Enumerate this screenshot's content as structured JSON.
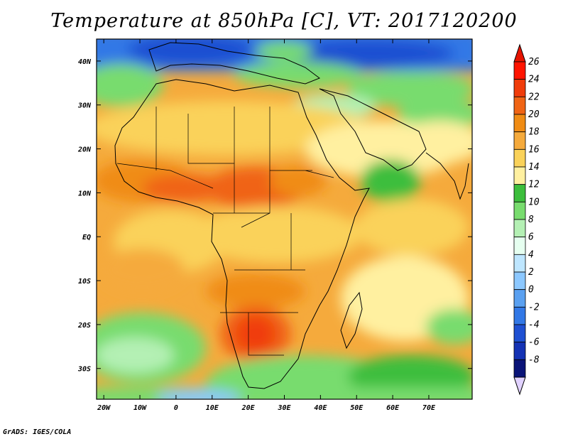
{
  "title": "Temperature at 850hPa [C], VT: 2017120200",
  "credit": "GrADS: IGES/COLA",
  "map": {
    "projection": "latlon",
    "lon_range": [
      -22,
      82
    ],
    "lat_range": [
      -37,
      45
    ],
    "lat_ticks": [
      {
        "value": 40,
        "label": "40N"
      },
      {
        "value": 30,
        "label": "30N"
      },
      {
        "value": 20,
        "label": "20N"
      },
      {
        "value": 10,
        "label": "10N"
      },
      {
        "value": 0,
        "label": "EQ"
      },
      {
        "value": -10,
        "label": "10S"
      },
      {
        "value": -20,
        "label": "20S"
      },
      {
        "value": -30,
        "label": "30S"
      }
    ],
    "lon_ticks": [
      {
        "value": -20,
        "label": "20W"
      },
      {
        "value": -10,
        "label": "10W"
      },
      {
        "value": 0,
        "label": "0"
      },
      {
        "value": 10,
        "label": "10E"
      },
      {
        "value": 20,
        "label": "20E"
      },
      {
        "value": 30,
        "label": "30E"
      },
      {
        "value": 40,
        "label": "40E"
      },
      {
        "value": 50,
        "label": "50E"
      },
      {
        "value": 60,
        "label": "60E"
      },
      {
        "value": 70,
        "label": "70E"
      }
    ]
  },
  "colorbar": {
    "levels": [
      {
        "label": "26",
        "color": "#ff1400"
      },
      {
        "label": "24",
        "color": "#f03c0a"
      },
      {
        "label": "22",
        "color": "#f06414"
      },
      {
        "label": "20",
        "color": "#f08c14"
      },
      {
        "label": "18",
        "color": "#f5aa3c"
      },
      {
        "label": "16",
        "color": "#fad25a"
      },
      {
        "label": "14",
        "color": "#fff0a0"
      },
      {
        "label": "12",
        "color": "#3cbe3c"
      },
      {
        "label": "10",
        "color": "#78dc6e"
      },
      {
        "label": "8",
        "color": "#b4f0b4"
      },
      {
        "label": "6",
        "color": "#e6fff0"
      },
      {
        "label": "4",
        "color": "#bee6ff"
      },
      {
        "label": "2",
        "color": "#8cc8ff"
      },
      {
        "label": "0",
        "color": "#5aa0f0"
      },
      {
        "label": "-2",
        "color": "#3278e6"
      },
      {
        "label": "-4",
        "color": "#1e50d2"
      },
      {
        "label": "-6",
        "color": "#1432b4"
      },
      {
        "label": "-8",
        "color": "#0a1478"
      }
    ],
    "top_arrow_color": "#e61400",
    "bottom_arrow_color": "#e1d2ff"
  }
}
